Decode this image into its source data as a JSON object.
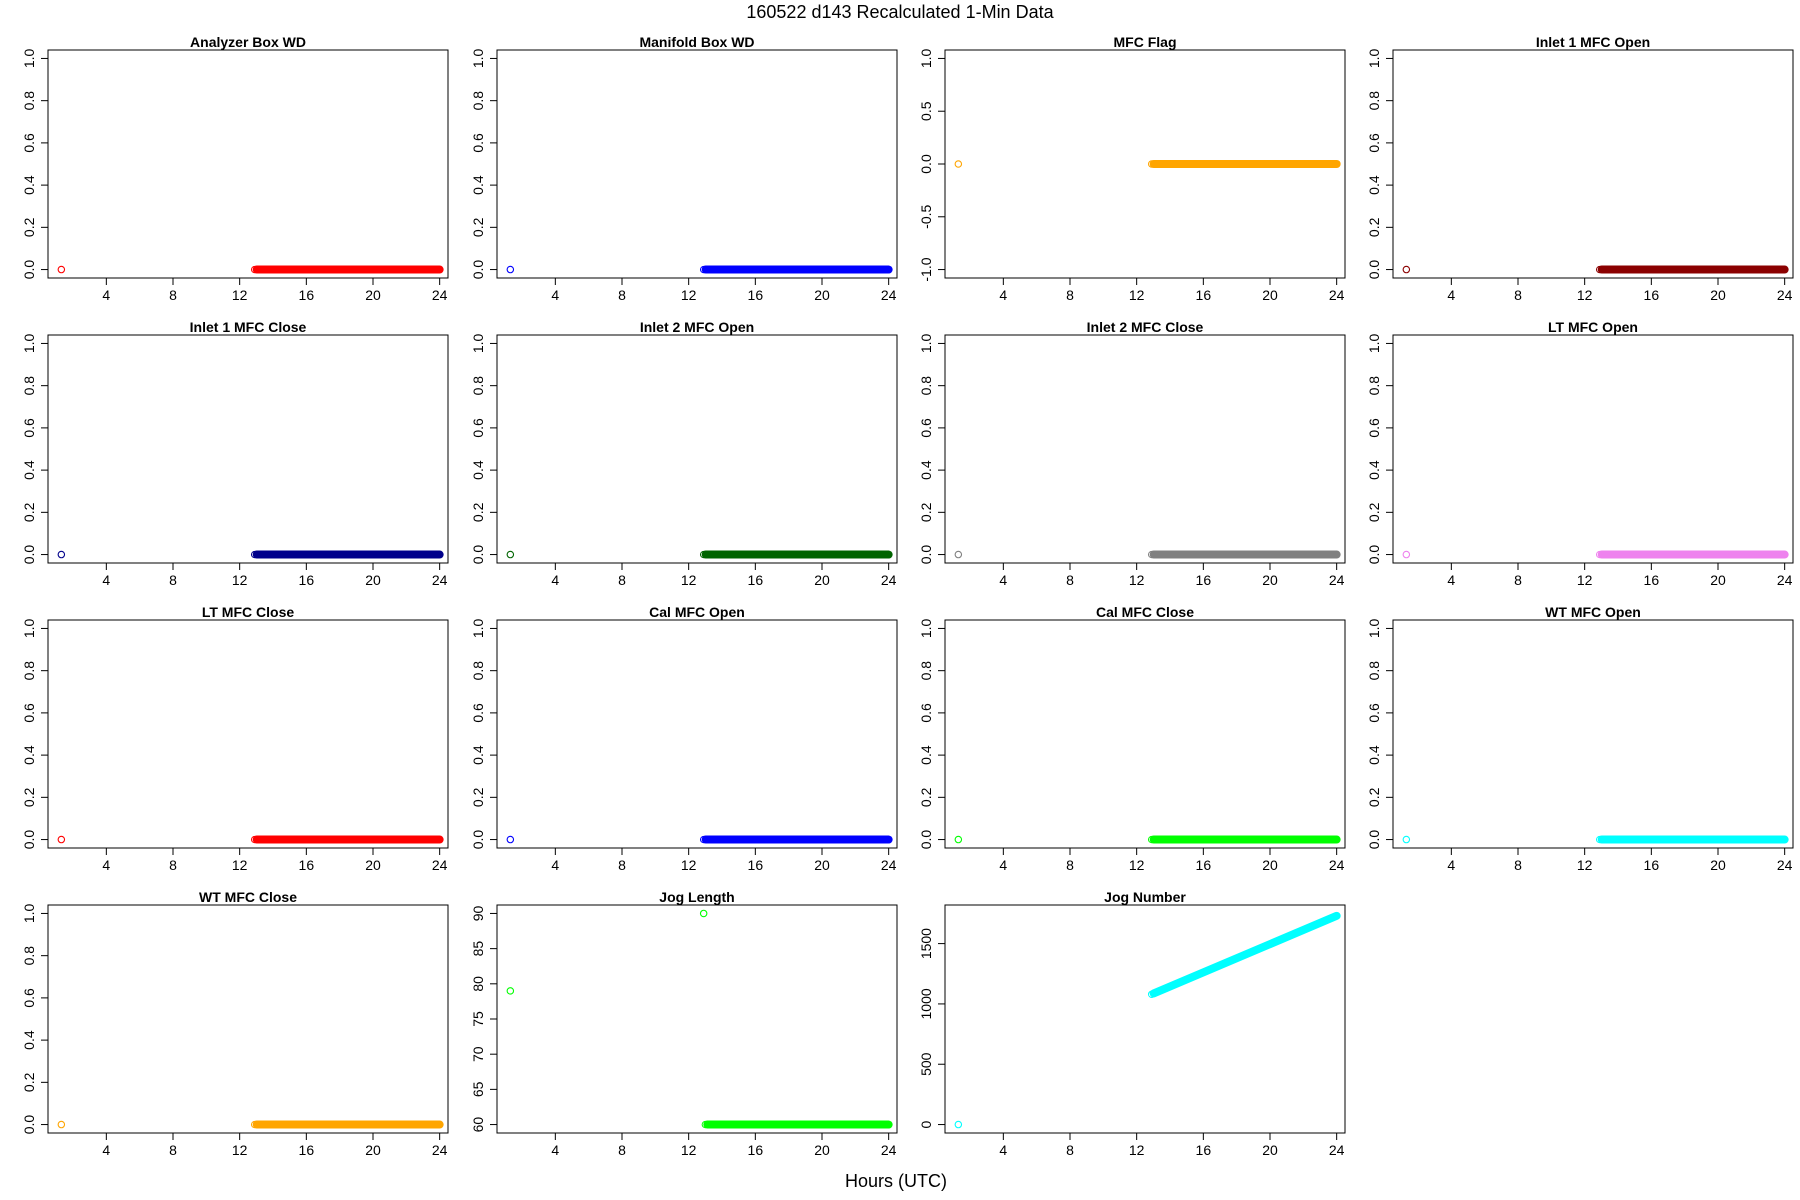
{
  "figure": {
    "title": "160522   d143   Recalculated 1-Min Data",
    "xlabel": "Hours (UTC)"
  },
  "chart_data": [
    {
      "type": "scatter",
      "title": "Analyzer Box WD",
      "color": "#ff0000",
      "xlim": [
        0.5,
        24.5
      ],
      "ylim": [
        0,
        1.0
      ],
      "xticks": [
        4,
        8,
        12,
        16,
        20,
        24
      ],
      "yticks": [
        0.0,
        0.2,
        0.4,
        0.6,
        0.8,
        1.0
      ],
      "ytick_labels": [
        "0.0",
        "0.2",
        "0.4",
        "0.6",
        "0.8",
        "1.0"
      ],
      "points": [
        [
          1.3,
          0
        ]
      ],
      "segments": [
        {
          "x": [
            12.9,
            24
          ],
          "y": [
            0,
            0
          ]
        }
      ]
    },
    {
      "type": "scatter",
      "title": "Manifold Box WD",
      "color": "#0000ff",
      "xlim": [
        0.5,
        24.5
      ],
      "ylim": [
        0,
        1.0
      ],
      "xticks": [
        4,
        8,
        12,
        16,
        20,
        24
      ],
      "yticks": [
        0.0,
        0.2,
        0.4,
        0.6,
        0.8,
        1.0
      ],
      "ytick_labels": [
        "0.0",
        "0.2",
        "0.4",
        "0.6",
        "0.8",
        "1.0"
      ],
      "points": [
        [
          1.3,
          0
        ]
      ],
      "segments": [
        {
          "x": [
            12.9,
            24
          ],
          "y": [
            0,
            0
          ]
        }
      ]
    },
    {
      "type": "scatter",
      "title": "MFC Flag",
      "color": "#ffa500",
      "xlim": [
        0.5,
        24.5
      ],
      "ylim": [
        -1.0,
        1.0
      ],
      "xticks": [
        4,
        8,
        12,
        16,
        20,
        24
      ],
      "yticks": [
        -1.0,
        -0.5,
        0.0,
        0.5,
        1.0
      ],
      "ytick_labels": [
        "-1.0",
        "-0.5",
        "0.0",
        "0.5",
        "1.0"
      ],
      "points": [
        [
          1.3,
          0
        ]
      ],
      "segments": [
        {
          "x": [
            12.9,
            24
          ],
          "y": [
            0,
            0
          ]
        }
      ]
    },
    {
      "type": "scatter",
      "title": "Inlet 1 MFC Open",
      "color": "#8b0000",
      "xlim": [
        0.5,
        24.5
      ],
      "ylim": [
        0,
        1.0
      ],
      "xticks": [
        4,
        8,
        12,
        16,
        20,
        24
      ],
      "yticks": [
        0.0,
        0.2,
        0.4,
        0.6,
        0.8,
        1.0
      ],
      "ytick_labels": [
        "0.0",
        "0.2",
        "0.4",
        "0.6",
        "0.8",
        "1.0"
      ],
      "points": [
        [
          1.3,
          0
        ]
      ],
      "segments": [
        {
          "x": [
            12.9,
            24
          ],
          "y": [
            0,
            0
          ]
        }
      ]
    },
    {
      "type": "scatter",
      "title": "Inlet 1 MFC Close",
      "color": "#00008b",
      "xlim": [
        0.5,
        24.5
      ],
      "ylim": [
        0,
        1.0
      ],
      "xticks": [
        4,
        8,
        12,
        16,
        20,
        24
      ],
      "yticks": [
        0.0,
        0.2,
        0.4,
        0.6,
        0.8,
        1.0
      ],
      "ytick_labels": [
        "0.0",
        "0.2",
        "0.4",
        "0.6",
        "0.8",
        "1.0"
      ],
      "points": [
        [
          1.3,
          0
        ]
      ],
      "segments": [
        {
          "x": [
            12.9,
            24
          ],
          "y": [
            0,
            0
          ]
        }
      ]
    },
    {
      "type": "scatter",
      "title": "Inlet 2 MFC Open",
      "color": "#006400",
      "xlim": [
        0.5,
        24.5
      ],
      "ylim": [
        0,
        1.0
      ],
      "xticks": [
        4,
        8,
        12,
        16,
        20,
        24
      ],
      "yticks": [
        0.0,
        0.2,
        0.4,
        0.6,
        0.8,
        1.0
      ],
      "ytick_labels": [
        "0.0",
        "0.2",
        "0.4",
        "0.6",
        "0.8",
        "1.0"
      ],
      "points": [
        [
          1.3,
          0
        ]
      ],
      "segments": [
        {
          "x": [
            12.9,
            24
          ],
          "y": [
            0,
            0
          ]
        }
      ]
    },
    {
      "type": "scatter",
      "title": "Inlet 2 MFC Close",
      "color": "#808080",
      "xlim": [
        0.5,
        24.5
      ],
      "ylim": [
        0,
        1.0
      ],
      "xticks": [
        4,
        8,
        12,
        16,
        20,
        24
      ],
      "yticks": [
        0.0,
        0.2,
        0.4,
        0.6,
        0.8,
        1.0
      ],
      "ytick_labels": [
        "0.0",
        "0.2",
        "0.4",
        "0.6",
        "0.8",
        "1.0"
      ],
      "points": [
        [
          1.3,
          0
        ]
      ],
      "segments": [
        {
          "x": [
            12.9,
            24
          ],
          "y": [
            0,
            0
          ]
        }
      ]
    },
    {
      "type": "scatter",
      "title": "LT MFC Open",
      "color": "#ee82ee",
      "xlim": [
        0.5,
        24.5
      ],
      "ylim": [
        0,
        1.0
      ],
      "xticks": [
        4,
        8,
        12,
        16,
        20,
        24
      ],
      "yticks": [
        0.0,
        0.2,
        0.4,
        0.6,
        0.8,
        1.0
      ],
      "ytick_labels": [
        "0.0",
        "0.2",
        "0.4",
        "0.6",
        "0.8",
        "1.0"
      ],
      "points": [
        [
          1.3,
          0
        ]
      ],
      "segments": [
        {
          "x": [
            12.9,
            24
          ],
          "y": [
            0,
            0
          ]
        }
      ]
    },
    {
      "type": "scatter",
      "title": "LT MFC Close",
      "color": "#ff0000",
      "xlim": [
        0.5,
        24.5
      ],
      "ylim": [
        0,
        1.0
      ],
      "xticks": [
        4,
        8,
        12,
        16,
        20,
        24
      ],
      "yticks": [
        0.0,
        0.2,
        0.4,
        0.6,
        0.8,
        1.0
      ],
      "ytick_labels": [
        "0.0",
        "0.2",
        "0.4",
        "0.6",
        "0.8",
        "1.0"
      ],
      "points": [
        [
          1.3,
          0
        ]
      ],
      "segments": [
        {
          "x": [
            12.9,
            24
          ],
          "y": [
            0,
            0
          ]
        }
      ]
    },
    {
      "type": "scatter",
      "title": "Cal MFC Open",
      "color": "#0000ff",
      "xlim": [
        0.5,
        24.5
      ],
      "ylim": [
        0,
        1.0
      ],
      "xticks": [
        4,
        8,
        12,
        16,
        20,
        24
      ],
      "yticks": [
        0.0,
        0.2,
        0.4,
        0.6,
        0.8,
        1.0
      ],
      "ytick_labels": [
        "0.0",
        "0.2",
        "0.4",
        "0.6",
        "0.8",
        "1.0"
      ],
      "points": [
        [
          1.3,
          0
        ]
      ],
      "segments": [
        {
          "x": [
            12.9,
            24
          ],
          "y": [
            0,
            0
          ]
        }
      ]
    },
    {
      "type": "scatter",
      "title": "Cal MFC Close",
      "color": "#00ff00",
      "xlim": [
        0.5,
        24.5
      ],
      "ylim": [
        0,
        1.0
      ],
      "xticks": [
        4,
        8,
        12,
        16,
        20,
        24
      ],
      "yticks": [
        0.0,
        0.2,
        0.4,
        0.6,
        0.8,
        1.0
      ],
      "ytick_labels": [
        "0.0",
        "0.2",
        "0.4",
        "0.6",
        "0.8",
        "1.0"
      ],
      "points": [
        [
          1.3,
          0
        ]
      ],
      "segments": [
        {
          "x": [
            12.9,
            24
          ],
          "y": [
            0,
            0
          ]
        }
      ]
    },
    {
      "type": "scatter",
      "title": "WT MFC Open",
      "color": "#00ffff",
      "xlim": [
        0.5,
        24.5
      ],
      "ylim": [
        0,
        1.0
      ],
      "xticks": [
        4,
        8,
        12,
        16,
        20,
        24
      ],
      "yticks": [
        0.0,
        0.2,
        0.4,
        0.6,
        0.8,
        1.0
      ],
      "ytick_labels": [
        "0.0",
        "0.2",
        "0.4",
        "0.6",
        "0.8",
        "1.0"
      ],
      "points": [
        [
          1.3,
          0
        ]
      ],
      "segments": [
        {
          "x": [
            12.9,
            24
          ],
          "y": [
            0,
            0
          ]
        }
      ]
    },
    {
      "type": "scatter",
      "title": "WT MFC Close",
      "color": "#ffa500",
      "xlim": [
        0.5,
        24.5
      ],
      "ylim": [
        0,
        1.0
      ],
      "xticks": [
        4,
        8,
        12,
        16,
        20,
        24
      ],
      "yticks": [
        0.0,
        0.2,
        0.4,
        0.6,
        0.8,
        1.0
      ],
      "ytick_labels": [
        "0.0",
        "0.2",
        "0.4",
        "0.6",
        "0.8",
        "1.0"
      ],
      "points": [
        [
          1.3,
          0
        ]
      ],
      "segments": [
        {
          "x": [
            12.9,
            24
          ],
          "y": [
            0,
            0
          ]
        }
      ]
    },
    {
      "type": "scatter",
      "title": "Jog Length",
      "color": "#00ff00",
      "xlim": [
        0.5,
        24.5
      ],
      "ylim": [
        60,
        90
      ],
      "xticks": [
        4,
        8,
        12,
        16,
        20,
        24
      ],
      "yticks": [
        60,
        65,
        70,
        75,
        80,
        85,
        90
      ],
      "ytick_labels": [
        "60",
        "65",
        "70",
        "75",
        "80",
        "85",
        "90"
      ],
      "points": [
        [
          1.3,
          79
        ],
        [
          12.9,
          90
        ]
      ],
      "segments": [
        {
          "x": [
            13.0,
            24
          ],
          "y": [
            60,
            60
          ]
        }
      ]
    },
    {
      "type": "scatter",
      "title": "Jog Number",
      "color": "#00ffff",
      "xlim": [
        0.5,
        24.5
      ],
      "ylim": [
        0,
        1750
      ],
      "xticks": [
        4,
        8,
        12,
        16,
        20,
        24
      ],
      "yticks": [
        0,
        500,
        1000,
        1500
      ],
      "ytick_labels": [
        "0",
        "500",
        "1000",
        "1500"
      ],
      "points": [
        [
          1.3,
          0
        ]
      ],
      "segments": [
        {
          "x": [
            12.9,
            24
          ],
          "y": [
            1080,
            1730
          ]
        }
      ]
    }
  ]
}
